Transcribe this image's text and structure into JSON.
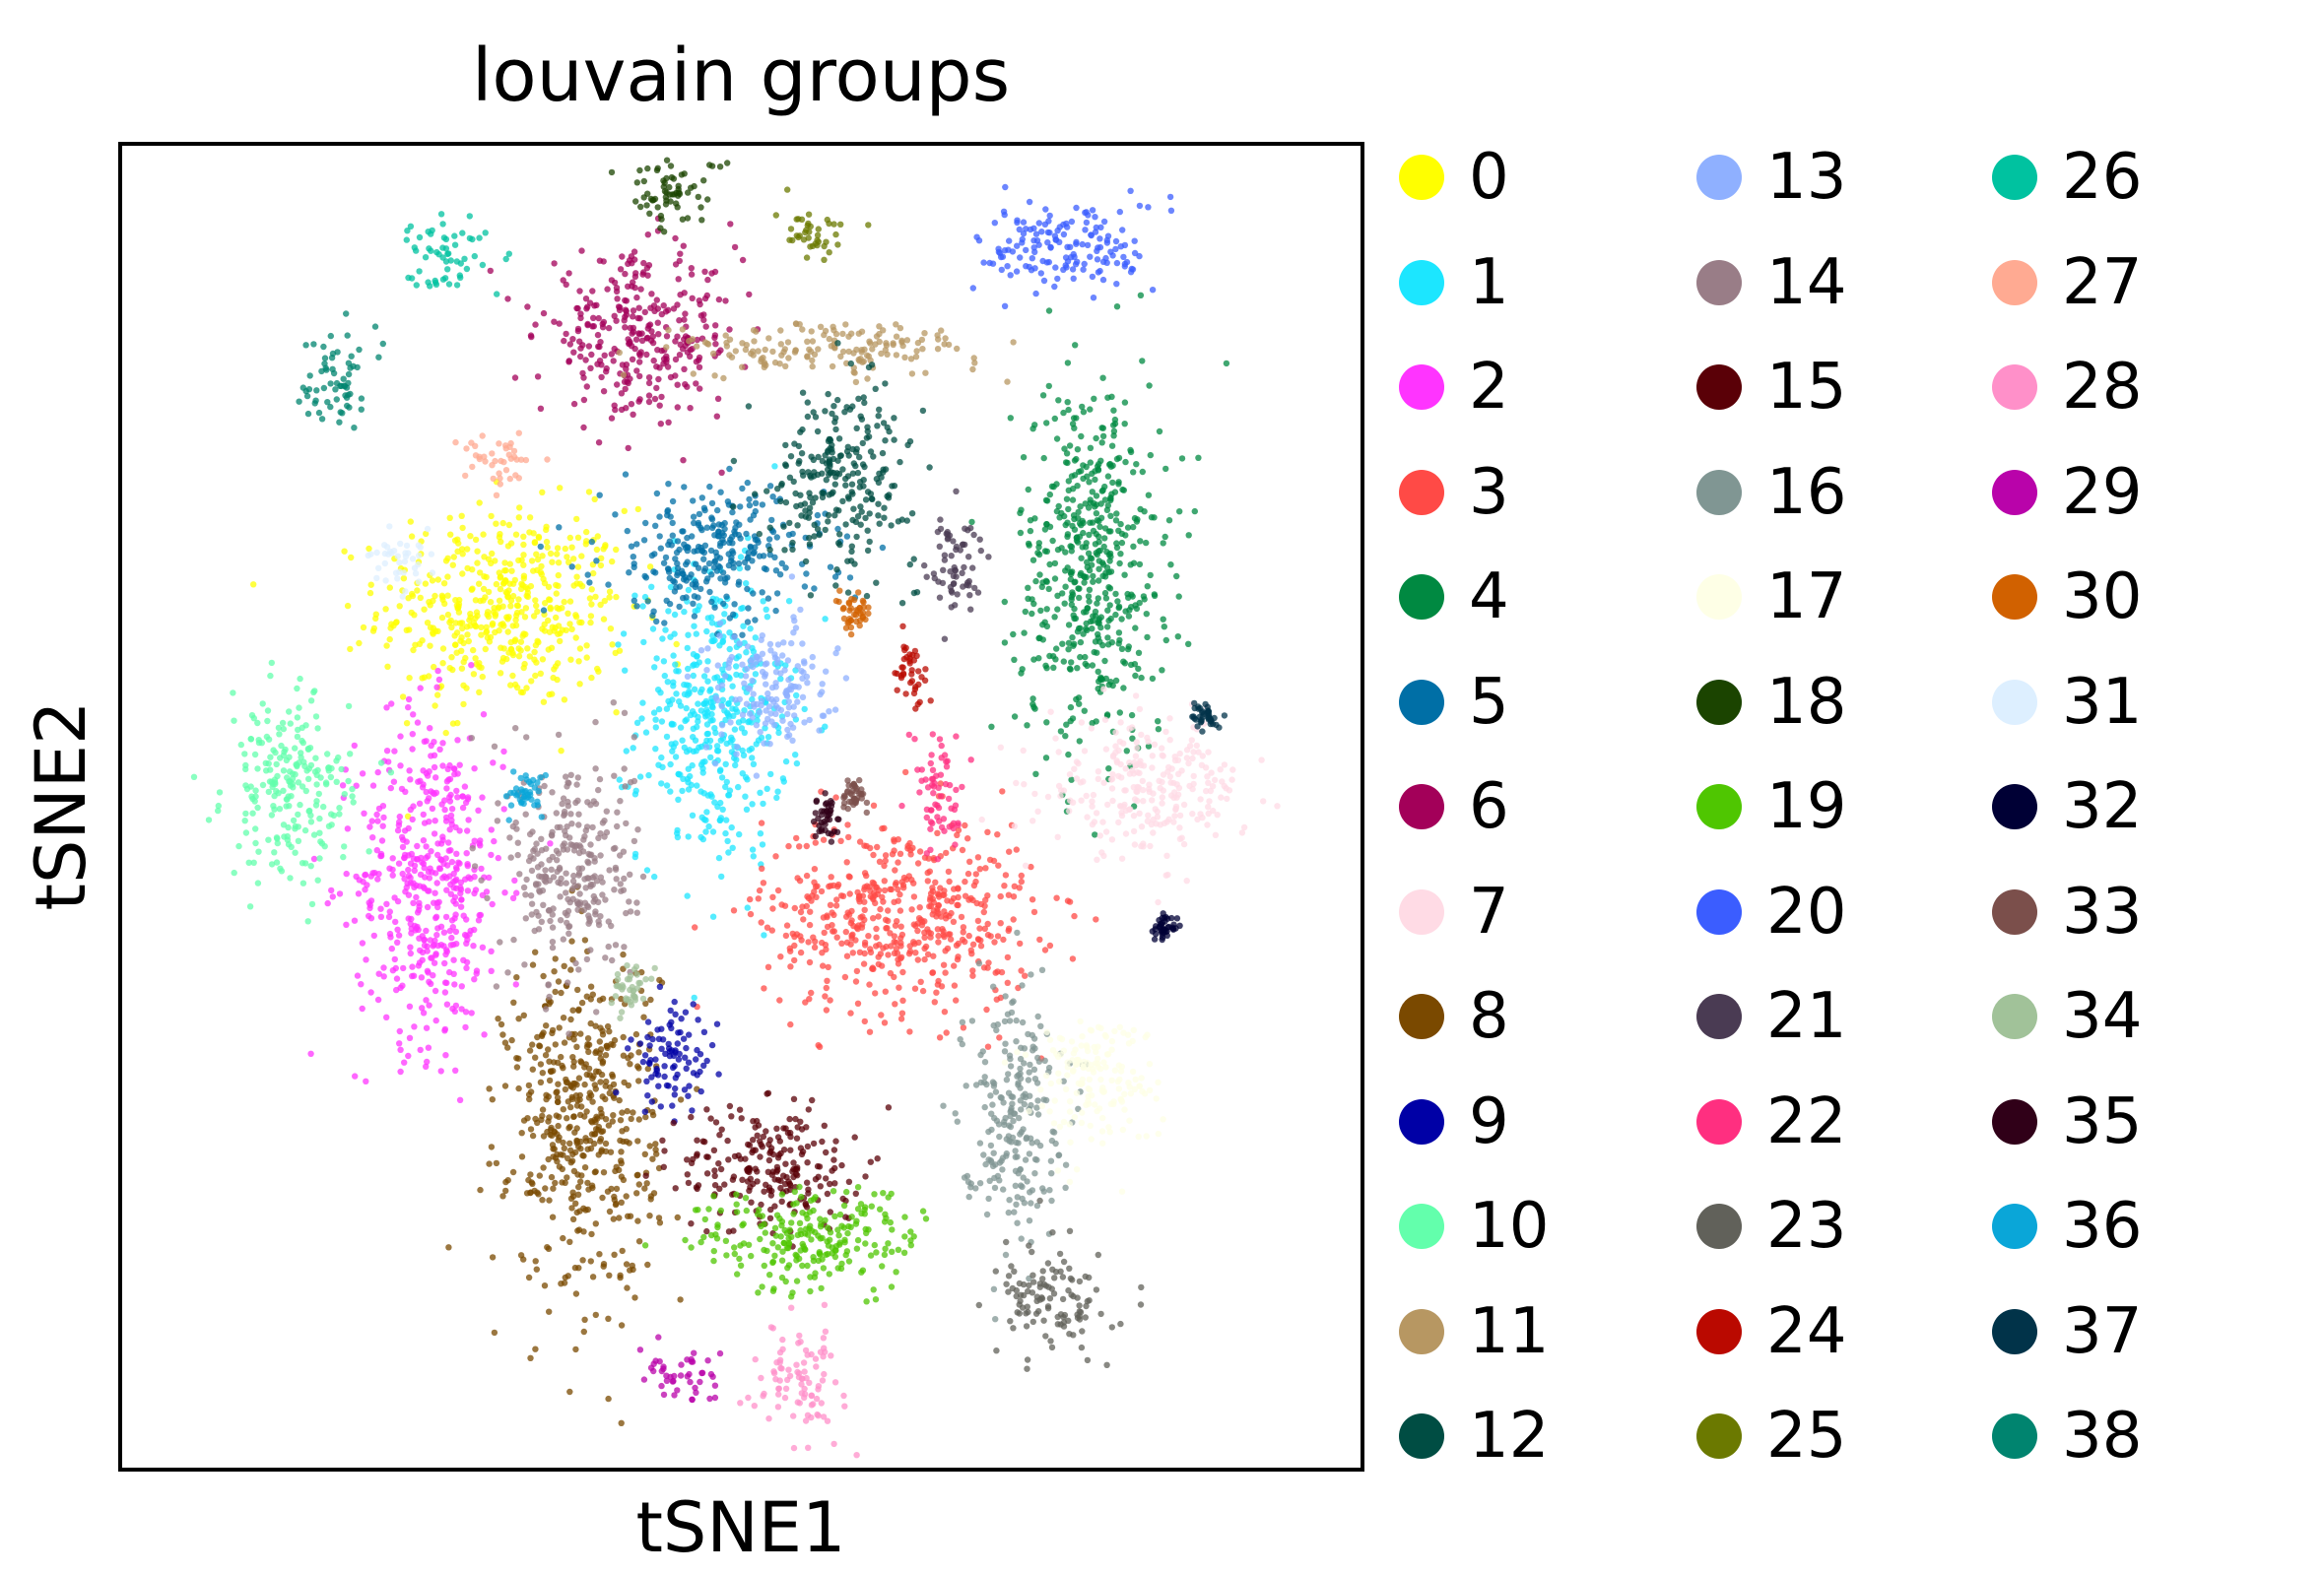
{
  "chart_data": {
    "type": "scatter",
    "title": "louvain groups",
    "xlabel": "tSNE1",
    "ylabel": "tSNE2",
    "grid": false,
    "legend_position": "right",
    "legend_columns": 3,
    "clusters": [
      {
        "name": "0",
        "color": "#ffff00",
        "center": [
          -0.42,
          0.33
        ],
        "spread": [
          0.2,
          0.15
        ]
      },
      {
        "name": "1",
        "color": "#1ce6ff",
        "center": [
          -0.05,
          0.15
        ],
        "spread": [
          0.12,
          0.22
        ]
      },
      {
        "name": "2",
        "color": "#ff34ff",
        "center": [
          -0.55,
          -0.12
        ],
        "spread": [
          0.12,
          0.25
        ]
      },
      {
        "name": "3",
        "color": "#ff4a46",
        "center": [
          0.28,
          -0.18
        ],
        "spread": [
          0.22,
          0.15
        ]
      },
      {
        "name": "4",
        "color": "#008941",
        "center": [
          0.62,
          0.4
        ],
        "spread": [
          0.12,
          0.28
        ]
      },
      {
        "name": "5",
        "color": "#006fa6",
        "center": [
          -0.05,
          0.42
        ],
        "spread": [
          0.18,
          0.1
        ]
      },
      {
        "name": "6",
        "color": "#a30059",
        "center": [
          -0.18,
          0.78
        ],
        "spread": [
          0.16,
          0.12
        ]
      },
      {
        "name": "7",
        "color": "#ffdbe5",
        "center": [
          0.72,
          0.03
        ],
        "spread": [
          0.16,
          0.1
        ]
      },
      {
        "name": "8",
        "color": "#7a4900",
        "center": [
          -0.28,
          -0.52
        ],
        "spread": [
          0.12,
          0.26
        ]
      },
      {
        "name": "9",
        "color": "#0000a6",
        "center": [
          -0.12,
          -0.42
        ],
        "spread": [
          0.07,
          0.08
        ]
      },
      {
        "name": "10",
        "color": "#63ffac",
        "center": [
          -0.8,
          0.03
        ],
        "spread": [
          0.1,
          0.14
        ]
      },
      {
        "name": "11",
        "color": "#b79762",
        "center": [
          0.15,
          0.76
        ],
        "spread": [
          0.25,
          0.04
        ]
      },
      {
        "name": "12",
        "color": "#004d43",
        "center": [
          0.18,
          0.55
        ],
        "spread": [
          0.12,
          0.13
        ]
      },
      {
        "name": "13",
        "color": "#8fb0ff",
        "center": [
          0.05,
          0.2
        ],
        "spread": [
          0.1,
          0.1
        ]
      },
      {
        "name": "14",
        "color": "#997d87",
        "center": [
          -0.3,
          -0.1
        ],
        "spread": [
          0.1,
          0.18
        ]
      },
      {
        "name": "15",
        "color": "#5a0007",
        "center": [
          0.05,
          -0.6
        ],
        "spread": [
          0.14,
          0.1
        ]
      },
      {
        "name": "16",
        "color": "#809693",
        "center": [
          0.48,
          -0.5
        ],
        "spread": [
          0.08,
          0.18
        ]
      },
      {
        "name": "17",
        "color": "#feffe6",
        "center": [
          0.62,
          -0.45
        ],
        "spread": [
          0.1,
          0.1
        ]
      },
      {
        "name": "18",
        "color": "#1b4400",
        "center": [
          -0.12,
          1.02
        ],
        "spread": [
          0.08,
          0.05
        ]
      },
      {
        "name": "19",
        "color": "#4fc601",
        "center": [
          0.12,
          -0.72
        ],
        "spread": [
          0.18,
          0.08
        ]
      },
      {
        "name": "20",
        "color": "#3b5dff",
        "center": [
          0.58,
          0.93
        ],
        "spread": [
          0.14,
          0.07
        ]
      },
      {
        "name": "21",
        "color": "#4a3b53",
        "center": [
          0.38,
          0.4
        ],
        "spread": [
          0.05,
          0.08
        ]
      },
      {
        "name": "22",
        "color": "#ff2f80",
        "center": [
          0.35,
          0.02
        ],
        "spread": [
          0.04,
          0.1
        ]
      },
      {
        "name": "23",
        "color": "#61615a",
        "center": [
          0.55,
          -0.82
        ],
        "spread": [
          0.09,
          0.08
        ]
      },
      {
        "name": "24",
        "color": "#ba0900",
        "center": [
          0.3,
          0.22
        ],
        "spread": [
          0.03,
          0.05
        ]
      },
      {
        "name": "25",
        "color": "#6b7900",
        "center": [
          0.12,
          0.95
        ],
        "spread": [
          0.06,
          0.04
        ]
      },
      {
        "name": "26",
        "color": "#00c2a0",
        "center": [
          -0.52,
          0.92
        ],
        "spread": [
          0.06,
          0.06
        ]
      },
      {
        "name": "27",
        "color": "#ffaa92",
        "center": [
          -0.43,
          0.58
        ],
        "spread": [
          0.06,
          0.04
        ]
      },
      {
        "name": "28",
        "color": "#ff90c9",
        "center": [
          0.1,
          -0.95
        ],
        "spread": [
          0.07,
          0.08
        ]
      },
      {
        "name": "29",
        "color": "#b903aa",
        "center": [
          -0.1,
          -0.95
        ],
        "spread": [
          0.07,
          0.04
        ]
      },
      {
        "name": "30",
        "color": "#d16100",
        "center": [
          0.2,
          0.32
        ],
        "spread": [
          0.03,
          0.03
        ]
      },
      {
        "name": "31",
        "color": "#ddefff",
        "center": [
          -0.6,
          0.4
        ],
        "spread": [
          0.05,
          0.04
        ]
      },
      {
        "name": "32",
        "color": "#000035",
        "center": [
          0.75,
          -0.2
        ],
        "spread": [
          0.02,
          0.02
        ]
      },
      {
        "name": "33",
        "color": "#7b4f4b",
        "center": [
          0.2,
          0.02
        ],
        "spread": [
          0.02,
          0.03
        ]
      },
      {
        "name": "34",
        "color": "#a1c299",
        "center": [
          -0.2,
          -0.3
        ],
        "spread": [
          0.03,
          0.03
        ]
      },
      {
        "name": "35",
        "color": "#300018",
        "center": [
          0.15,
          -0.02
        ],
        "spread": [
          0.02,
          0.04
        ]
      },
      {
        "name": "36",
        "color": "#0aa6d8",
        "center": [
          -0.38,
          0.02
        ],
        "spread": [
          0.03,
          0.03
        ]
      },
      {
        "name": "37",
        "color": "#013349",
        "center": [
          0.82,
          0.15
        ],
        "spread": [
          0.02,
          0.02
        ]
      },
      {
        "name": "38",
        "color": "#00846f",
        "center": [
          -0.72,
          0.72
        ],
        "spread": [
          0.05,
          0.08
        ]
      }
    ]
  }
}
